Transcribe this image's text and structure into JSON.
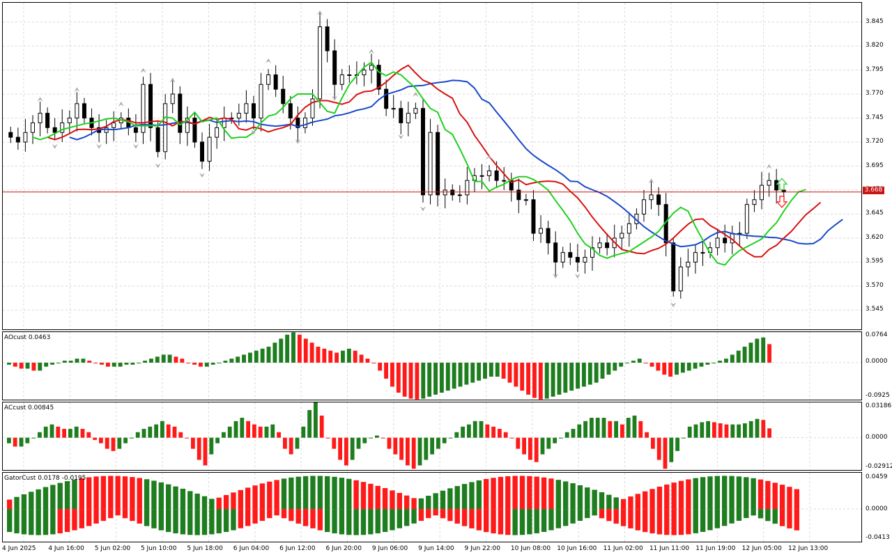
{
  "colors": {
    "bull_bar": "#1e7d1e",
    "bear_bar": "#ff1a1a",
    "jaw": "#1848c8",
    "teeth": "#d81010",
    "lips": "#20d020",
    "price_line": "#c81414",
    "grid": "#d9d9d9"
  },
  "main": {
    "price_axis": [
      "3.845",
      "3.820",
      "3.795",
      "3.770",
      "3.745",
      "3.720",
      "3.695",
      "3.670",
      "3.645",
      "3.620",
      "3.595",
      "3.570",
      "3.545"
    ],
    "current_price": "3.668",
    "signal_up_icon": "arrow-up-icon",
    "signal_down_icon": "arrow-down-icon"
  },
  "ao": {
    "label": "AOcust 0.0463",
    "axis": [
      "0.0764",
      "0.0000",
      "-0.0925"
    ]
  },
  "ac": {
    "label": "ACcust 0.00845",
    "axis": [
      "0.03186",
      "0.0000",
      "-0.02912"
    ]
  },
  "gator": {
    "label": "GatorCust 0.0178 -0.0195",
    "axis": [
      "0.0459",
      "0.0000",
      "-0.0413"
    ]
  },
  "time_axis": [
    "4 Jun 2025",
    "4 Jun 16:00",
    "5 Jun 02:00",
    "5 Jun 10:00",
    "5 Jun 18:00",
    "6 Jun 04:00",
    "6 Jun 12:00",
    "6 Jun 20:00",
    "9 Jun 06:00",
    "9 Jun 14:00",
    "9 Jun 22:00",
    "10 Jun 08:00",
    "10 Jun 16:00",
    "11 Jun 02:00",
    "11 Jun 11:00",
    "11 Jun 19:00",
    "12 Jun 05:00",
    "12 Jun 13:00"
  ],
  "chart_data": {
    "type": "candlestick",
    "price_range": [
      3.525,
      3.865
    ],
    "close_approx": [
      3.725,
      3.72,
      3.73,
      3.74,
      3.75,
      3.735,
      3.73,
      3.74,
      3.745,
      3.76,
      3.745,
      3.735,
      3.73,
      3.735,
      3.74,
      3.745,
      3.735,
      3.73,
      3.78,
      3.735,
      3.71,
      3.76,
      3.77,
      3.73,
      3.745,
      3.72,
      3.7,
      3.725,
      3.735,
      3.745,
      3.745,
      3.75,
      3.76,
      3.745,
      3.78,
      3.79,
      3.775,
      3.76,
      3.745,
      3.735,
      3.745,
      3.765,
      3.84,
      3.815,
      3.78,
      3.79,
      3.79,
      3.79,
      3.795,
      3.8,
      3.775,
      3.755,
      3.755,
      3.74,
      3.75,
      3.755,
      3.665,
      3.73,
      3.665,
      3.67,
      3.665,
      3.665,
      3.68,
      3.685,
      3.685,
      3.69,
      3.68,
      3.68,
      3.67,
      3.66,
      3.66,
      3.625,
      3.63,
      3.615,
      3.595,
      3.605,
      3.6,
      3.595,
      3.6,
      3.61,
      3.615,
      3.61,
      3.62,
      3.625,
      3.635,
      3.645,
      3.66,
      3.665,
      3.655,
      3.615,
      3.565,
      3.59,
      3.595,
      3.605,
      3.605,
      3.61,
      3.62,
      3.615,
      3.625,
      3.625,
      3.655,
      3.66,
      3.675,
      3.68,
      3.67,
      3.668
    ],
    "ao_values": [
      -0.005,
      -0.01,
      -0.015,
      -0.015,
      -0.02,
      -0.02,
      -0.01,
      -0.005,
      0.0,
      0.005,
      0.005,
      0.01,
      0.01,
      0.005,
      0.0,
      -0.005,
      -0.01,
      -0.01,
      -0.01,
      -0.005,
      -0.005,
      0.0,
      0.005,
      0.01,
      0.015,
      0.02,
      0.02,
      0.015,
      0.01,
      0.0,
      -0.005,
      -0.01,
      -0.01,
      -0.005,
      0.0,
      0.005,
      0.01,
      0.015,
      0.02,
      0.025,
      0.03,
      0.035,
      0.04,
      0.05,
      0.06,
      0.07,
      0.076,
      0.07,
      0.06,
      0.05,
      0.04,
      0.035,
      0.03,
      0.025,
      0.03,
      0.035,
      0.03,
      0.02,
      0.01,
      0.0,
      -0.02,
      -0.04,
      -0.06,
      -0.075,
      -0.085,
      -0.09,
      -0.092,
      -0.09,
      -0.085,
      -0.08,
      -0.075,
      -0.07,
      -0.065,
      -0.06,
      -0.055,
      -0.05,
      -0.045,
      -0.04,
      -0.035,
      -0.035,
      -0.04,
      -0.05,
      -0.06,
      -0.07,
      -0.08,
      -0.088,
      -0.092,
      -0.09,
      -0.085,
      -0.08,
      -0.075,
      -0.07,
      -0.065,
      -0.06,
      -0.055,
      -0.05,
      -0.04,
      -0.03,
      -0.02,
      -0.01,
      0.0,
      0.005,
      0.01,
      0.0,
      -0.01,
      -0.02,
      -0.03,
      -0.035,
      -0.03,
      -0.025,
      -0.02,
      -0.015,
      -0.01,
      -0.005,
      0.0,
      0.005,
      0.01,
      0.02,
      0.03,
      0.04,
      0.05,
      0.06,
      0.063,
      0.0463
    ],
    "ac_values": [
      -0.005,
      -0.008,
      -0.008,
      -0.005,
      0.0,
      0.005,
      0.01,
      0.012,
      0.01,
      0.008,
      0.008,
      0.01,
      0.008,
      0.005,
      -0.002,
      -0.005,
      -0.01,
      -0.012,
      -0.01,
      -0.005,
      0.0,
      0.005,
      0.008,
      0.01,
      0.012,
      0.015,
      0.012,
      0.01,
      0.005,
      0.0,
      -0.01,
      -0.02,
      -0.025,
      -0.015,
      -0.005,
      0.005,
      0.01,
      0.015,
      0.018,
      0.015,
      0.012,
      0.01,
      0.01,
      0.012,
      0.005,
      -0.01,
      -0.015,
      -0.01,
      0.01,
      0.025,
      0.032,
      0.02,
      0.0,
      -0.01,
      -0.02,
      -0.025,
      -0.02,
      -0.01,
      -0.005,
      0.0,
      0.002,
      0.0,
      -0.01,
      -0.015,
      -0.02,
      -0.025,
      -0.028,
      -0.025,
      -0.02,
      -0.015,
      -0.01,
      -0.005,
      0.0,
      0.005,
      0.01,
      0.012,
      0.015,
      0.015,
      0.012,
      0.01,
      0.008,
      0.005,
      0.0,
      -0.01,
      -0.015,
      -0.02,
      -0.022,
      -0.015,
      -0.01,
      -0.005,
      0.0,
      0.005,
      0.008,
      0.012,
      0.015,
      0.018,
      0.018,
      0.018,
      0.015,
      0.015,
      0.012,
      0.018,
      0.02,
      0.015,
      0.005,
      -0.01,
      -0.02,
      -0.028,
      -0.022,
      -0.012,
      0.0,
      0.01,
      0.012,
      0.014,
      0.015,
      0.014,
      0.013,
      0.012,
      0.012,
      0.012,
      0.013,
      0.015,
      0.017,
      0.016,
      0.00845
    ]
  }
}
